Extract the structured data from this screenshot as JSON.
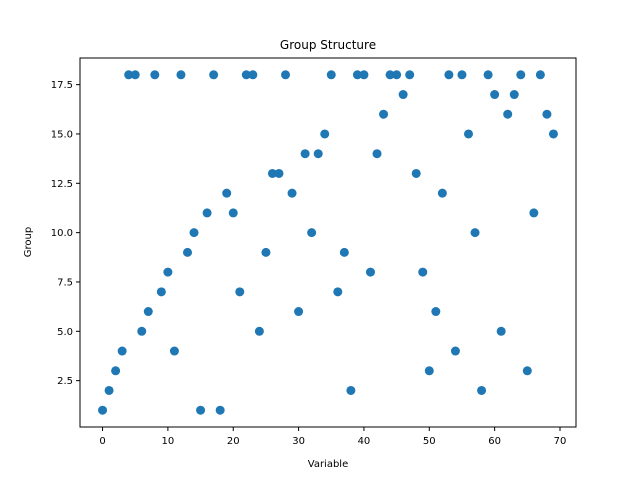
{
  "chart_data": {
    "type": "scatter",
    "title": "Group Structure",
    "xlabel": "Variable",
    "ylabel": "Group",
    "xlim": [
      -3.45,
      72.45
    ],
    "ylim": [
      0.15,
      18.85
    ],
    "xticks": [
      0,
      10,
      20,
      30,
      40,
      50,
      60,
      70
    ],
    "yticks": [
      2.5,
      5.0,
      7.5,
      10.0,
      12.5,
      15.0,
      17.5
    ],
    "ytick_labels": [
      "2.5",
      "5.0",
      "7.5",
      "10.0",
      "12.5",
      "15.0",
      "17.5"
    ],
    "grid": false,
    "marker_color": "#1f77b4",
    "points": [
      [
        0,
        1
      ],
      [
        1,
        2
      ],
      [
        2,
        3
      ],
      [
        3,
        4
      ],
      [
        4,
        18
      ],
      [
        5,
        18
      ],
      [
        6,
        5
      ],
      [
        7,
        6
      ],
      [
        8,
        18
      ],
      [
        9,
        7
      ],
      [
        10,
        8
      ],
      [
        11,
        4
      ],
      [
        12,
        18
      ],
      [
        13,
        9
      ],
      [
        14,
        10
      ],
      [
        15,
        1
      ],
      [
        16,
        11
      ],
      [
        17,
        18
      ],
      [
        18,
        1
      ],
      [
        19,
        12
      ],
      [
        20,
        11
      ],
      [
        21,
        7
      ],
      [
        22,
        18
      ],
      [
        23,
        18
      ],
      [
        24,
        5
      ],
      [
        25,
        9
      ],
      [
        26,
        13
      ],
      [
        27,
        13
      ],
      [
        28,
        18
      ],
      [
        29,
        12
      ],
      [
        30,
        6
      ],
      [
        31,
        14
      ],
      [
        32,
        10
      ],
      [
        33,
        14
      ],
      [
        34,
        15
      ],
      [
        35,
        18
      ],
      [
        36,
        7
      ],
      [
        37,
        9
      ],
      [
        38,
        2
      ],
      [
        39,
        18
      ],
      [
        40,
        18
      ],
      [
        41,
        8
      ],
      [
        42,
        14
      ],
      [
        43,
        16
      ],
      [
        44,
        18
      ],
      [
        45,
        18
      ],
      [
        46,
        17
      ],
      [
        47,
        18
      ],
      [
        48,
        13
      ],
      [
        49,
        8
      ],
      [
        50,
        3
      ],
      [
        51,
        6
      ],
      [
        52,
        12
      ],
      [
        53,
        18
      ],
      [
        54,
        4
      ],
      [
        55,
        18
      ],
      [
        56,
        15
      ],
      [
        57,
        10
      ],
      [
        58,
        2
      ],
      [
        59,
        18
      ],
      [
        60,
        17
      ],
      [
        61,
        5
      ],
      [
        62,
        16
      ],
      [
        63,
        17
      ],
      [
        64,
        18
      ],
      [
        65,
        3
      ],
      [
        66,
        11
      ],
      [
        67,
        18
      ],
      [
        68,
        16
      ],
      [
        69,
        15
      ]
    ]
  }
}
